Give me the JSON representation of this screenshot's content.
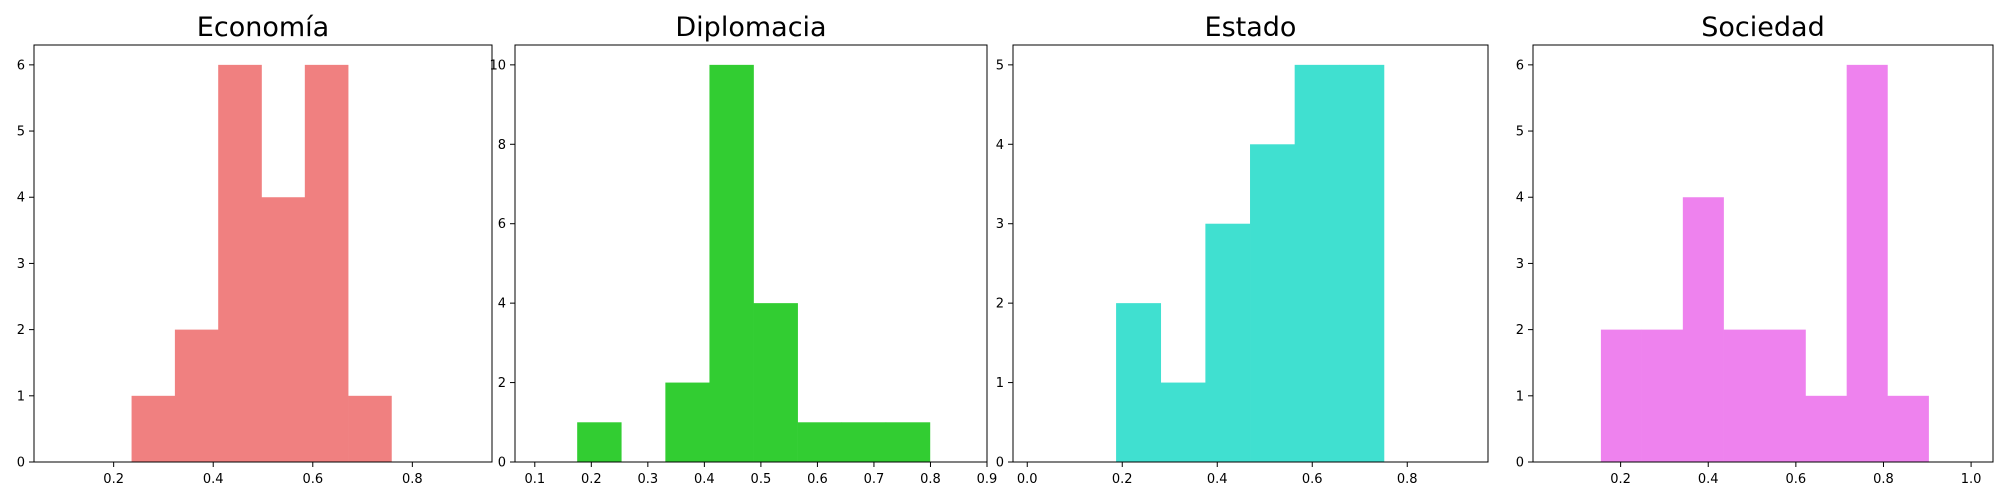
{
  "chart_data": [
    {
      "type": "histogram",
      "title": "Economía",
      "color": "#f08080",
      "xlim": [
        0.04,
        0.96
      ],
      "ylim": [
        0,
        6.3
      ],
      "xticks": [
        0.2,
        0.4,
        0.6,
        0.8
      ],
      "xtick_labels": [
        "0.2",
        "0.4",
        "0.6",
        "0.8"
      ],
      "yticks": [
        0,
        1,
        2,
        3,
        4,
        5,
        6
      ],
      "ytick_labels": [
        "0",
        "1",
        "2",
        "3",
        "4",
        "5",
        "6"
      ],
      "bin_edges": [
        0.236,
        0.323,
        0.41,
        0.497,
        0.584,
        0.671,
        0.758
      ],
      "counts": [
        1,
        2,
        6,
        4,
        6,
        1
      ],
      "grid": false,
      "xlabel": "",
      "ylabel": ""
    },
    {
      "type": "histogram",
      "title": "Diplomacia",
      "color": "#32cd32",
      "xlim": [
        0.065,
        0.9
      ],
      "ylim": [
        0,
        10.5
      ],
      "xticks": [
        0.1,
        0.2,
        0.3,
        0.4,
        0.5,
        0.6,
        0.7,
        0.8,
        0.9
      ],
      "xtick_labels": [
        "0.1",
        "0.2",
        "0.3",
        "0.4",
        "0.5",
        "0.6",
        "0.7",
        "0.8",
        "0.9"
      ],
      "yticks": [
        0,
        2,
        4,
        6,
        8,
        10
      ],
      "ytick_labels": [
        "0",
        "2",
        "4",
        "6",
        "8",
        "10"
      ],
      "bin_edges": [
        0.175,
        0.253,
        0.331,
        0.409,
        0.487,
        0.565,
        0.643,
        0.721,
        0.799
      ],
      "counts": [
        1,
        0,
        2,
        10,
        4,
        1,
        1,
        1
      ],
      "grid": false,
      "xlabel": "",
      "ylabel": ""
    },
    {
      "type": "histogram",
      "title": "Estado",
      "color": "#40e0d0",
      "xlim": [
        -0.03,
        0.97
      ],
      "ylim": [
        0,
        5.25
      ],
      "xticks": [
        0.0,
        0.2,
        0.4,
        0.6,
        0.8
      ],
      "xtick_labels": [
        "0.0",
        "0.2",
        "0.4",
        "0.6",
        "0.8"
      ],
      "yticks": [
        0,
        1,
        2,
        3,
        4,
        5
      ],
      "ytick_labels": [
        "0",
        "1",
        "2",
        "3",
        "4",
        "5"
      ],
      "bin_edges": [
        0.187,
        0.281,
        0.375,
        0.469,
        0.563,
        0.657,
        0.751
      ],
      "counts": [
        2,
        1,
        3,
        4,
        5,
        5
      ],
      "grid": false,
      "xlabel": "",
      "ylabel": ""
    },
    {
      "type": "histogram",
      "title": "Sociedad",
      "color": "#ee82ee",
      "xlim": [
        0.0,
        1.05
      ],
      "ylim": [
        0,
        6.3
      ],
      "xticks": [
        0.2,
        0.4,
        0.6,
        0.8,
        1.0
      ],
      "xtick_labels": [
        "0.2",
        "0.4",
        "0.6",
        "0.8",
        "1.0"
      ],
      "yticks": [
        0,
        1,
        2,
        3,
        4,
        5,
        6
      ],
      "ytick_labels": [
        "0",
        "1",
        "2",
        "3",
        "4",
        "5",
        "6"
      ],
      "bin_edges": [
        0.155,
        0.248,
        0.342,
        0.435,
        0.529,
        0.622,
        0.716,
        0.809,
        0.903
      ],
      "counts": [
        2,
        2,
        4,
        2,
        2,
        1,
        6,
        1
      ],
      "grid": false,
      "xlabel": "",
      "ylabel": ""
    }
  ]
}
